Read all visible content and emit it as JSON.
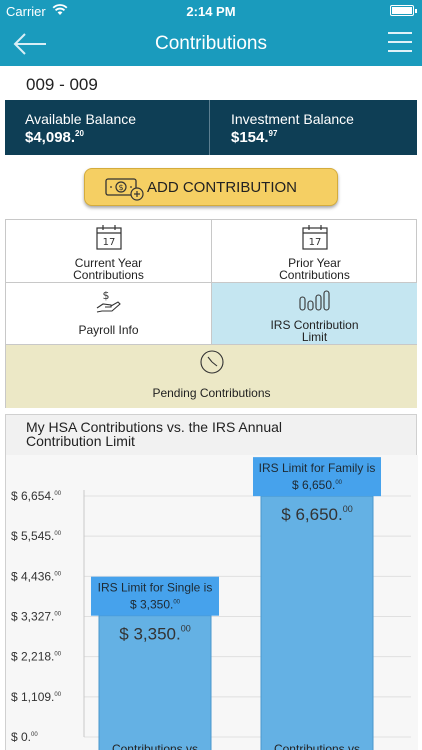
{
  "status_bar": {
    "carrier": "Carrier",
    "time": "2:14 PM"
  },
  "nav": {
    "title": "Contributions"
  },
  "account": {
    "id": "009 - 009"
  },
  "balances": {
    "available_label": "Available Balance",
    "available_whole": "$4,098.",
    "available_cents": "20",
    "investment_label": "Investment Balance",
    "investment_whole": "$154.",
    "investment_cents": "97"
  },
  "add_contribution": {
    "label": "ADD CONTRIBUTION"
  },
  "tiles": {
    "current_year": {
      "line1": "Current Year",
      "line2": "Contributions",
      "day": "17"
    },
    "prior_year": {
      "line1": "Prior Year",
      "line2": "Contributions",
      "day": "17"
    },
    "payroll": {
      "label": "Payroll Info"
    },
    "irs_limit": {
      "line1": "IRS Contribution",
      "line2": "Limit"
    },
    "pending": {
      "label": "Pending Contributions"
    }
  },
  "chart": {
    "title_line1": "My HSA Contributions vs. the IRS Annual",
    "title_line2": "Contribution Limit"
  },
  "chart_data": {
    "type": "bar",
    "title": "My HSA Contributions vs. the IRS Annual Contribution Limit",
    "ylim": [
      0,
      6654
    ],
    "yticks": [
      {
        "value": 0,
        "whole": "$ 0.",
        "cents": "00"
      },
      {
        "value": 1109,
        "whole": "$ 1,109.",
        "cents": "00"
      },
      {
        "value": 2218,
        "whole": "$ 2,218.",
        "cents": "00"
      },
      {
        "value": 3327,
        "whole": "$ 3,327.",
        "cents": "00"
      },
      {
        "value": 4436,
        "whole": "$ 4,436.",
        "cents": "00"
      },
      {
        "value": 5545,
        "whole": "$ 5,545.",
        "cents": "00"
      },
      {
        "value": 6654,
        "whole": "$ 6,654.",
        "cents": "00"
      }
    ],
    "bars": [
      {
        "category": "Contributions vs",
        "value": 3350,
        "limit_line1": "IRS Limit for Single is",
        "limit_line2": "$ 3,350.",
        "limit_cents": "00",
        "label_whole": "$ 3,350.",
        "label_cents": "00"
      },
      {
        "category": "Contributions vs",
        "value": 6650,
        "limit_line1": "IRS Limit for Family is",
        "limit_line2": "$ 6,650.",
        "limit_cents": "00",
        "label_whole": "$ 6,650.",
        "label_cents": "00"
      }
    ],
    "colors": {
      "bar": "#64b1e4",
      "bar_border": "#4a97cc",
      "callout": "#46a2ec",
      "grid": "#e0e0e0",
      "axis": "#c8c8c8"
    }
  }
}
